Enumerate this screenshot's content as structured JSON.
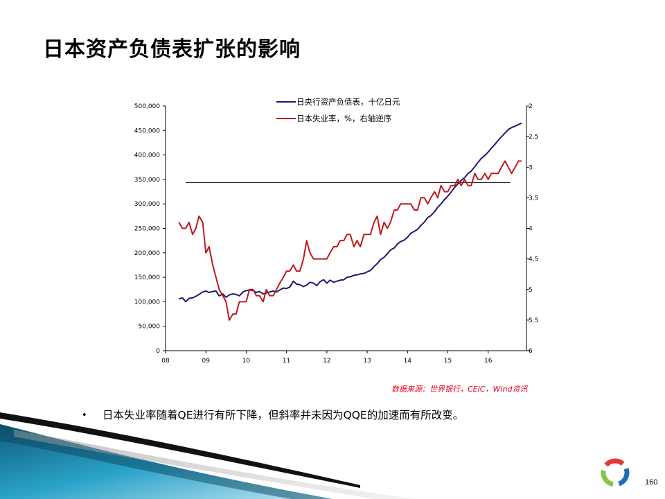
{
  "slide": {
    "title": "日本资产负债表扩张的影响",
    "source": "数据来源：世界银行，CEIC，Wind资讯",
    "bullet": "日本失业率随着QE进行有所下降，但斜率并未因为QQE的加速而有所改变。",
    "bullet_marker": "•",
    "page_number": "160"
  },
  "chart_data": {
    "type": "line",
    "x_ticks": [
      "08",
      "09",
      "10",
      "11",
      "12",
      "13",
      "14",
      "15",
      "16"
    ],
    "x_range": [
      2008.0,
      2016.95
    ],
    "y_left": {
      "min": 0,
      "max": 500000,
      "ticks": [
        "0",
        "50,000",
        "100,000",
        "150,000",
        "200,000",
        "250,000",
        "300,000",
        "350,000",
        "400,000",
        "450,000",
        "500,000"
      ]
    },
    "y_right": {
      "min": 2,
      "max": 6,
      "inverted": true,
      "ticks": [
        "2",
        "2.5",
        "3",
        "3.5",
        "4",
        "4.5",
        "5",
        "5.5",
        "6"
      ]
    },
    "reference_line": {
      "value": 3.25,
      "axis": "right",
      "x_from": 2008.5,
      "x_to": 2016.55,
      "color": "#000000"
    },
    "series": [
      {
        "name": "日央行资产负债表，十亿日元",
        "axis": "left",
        "color": "#1a1a6e",
        "x": [
          2008.33,
          2008.42,
          2008.5,
          2008.58,
          2008.67,
          2008.75,
          2008.83,
          2008.92,
          2009.0,
          2009.08,
          2009.17,
          2009.25,
          2009.33,
          2009.42,
          2009.5,
          2009.58,
          2009.67,
          2009.75,
          2009.83,
          2009.92,
          2010.0,
          2010.08,
          2010.17,
          2010.25,
          2010.33,
          2010.42,
          2010.5,
          2010.58,
          2010.67,
          2010.75,
          2010.83,
          2010.92,
          2011.0,
          2011.08,
          2011.17,
          2011.25,
          2011.33,
          2011.42,
          2011.5,
          2011.58,
          2011.67,
          2011.75,
          2011.83,
          2011.92,
          2012.0,
          2012.08,
          2012.17,
          2012.25,
          2012.33,
          2012.42,
          2012.5,
          2012.58,
          2012.67,
          2012.75,
          2012.83,
          2012.92,
          2013.0,
          2013.08,
          2013.17,
          2013.25,
          2013.33,
          2013.42,
          2013.5,
          2013.58,
          2013.67,
          2013.75,
          2013.83,
          2013.92,
          2014.0,
          2014.08,
          2014.17,
          2014.25,
          2014.33,
          2014.42,
          2014.5,
          2014.58,
          2014.67,
          2014.75,
          2014.83,
          2014.92,
          2015.0,
          2015.08,
          2015.17,
          2015.25,
          2015.33,
          2015.42,
          2015.5,
          2015.58,
          2015.67,
          2015.75,
          2015.83,
          2015.92,
          2016.0,
          2016.08,
          2016.17,
          2016.25,
          2016.33,
          2016.42,
          2016.5,
          2016.58,
          2016.67,
          2016.75,
          2016.83
        ],
        "values": [
          106000,
          108000,
          100000,
          107000,
          108000,
          111000,
          115000,
          120000,
          122000,
          119000,
          121000,
          122000,
          112000,
          116000,
          109000,
          114000,
          116000,
          115000,
          112000,
          120000,
          123000,
          124000,
          123000,
          119000,
          121000,
          116000,
          118000,
          120000,
          122000,
          120000,
          124000,
          128000,
          127000,
          130000,
          142000,
          136000,
          135000,
          131000,
          134000,
          140000,
          138000,
          133000,
          141000,
          145000,
          138000,
          144000,
          140000,
          142000,
          144000,
          145000,
          150000,
          151000,
          154000,
          155000,
          157000,
          158000,
          161000,
          164000,
          172000,
          178000,
          186000,
          191000,
          198000,
          206000,
          210000,
          218000,
          223000,
          226000,
          232000,
          240000,
          244000,
          248000,
          256000,
          263000,
          272000,
          276000,
          284000,
          293000,
          300000,
          309000,
          316000,
          324000,
          334000,
          341000,
          348000,
          354000,
          362000,
          367000,
          376000,
          385000,
          393000,
          399000,
          406000,
          414000,
          422000,
          430000,
          437000,
          445000,
          452000,
          456000,
          459000,
          462000,
          465000
        ]
      },
      {
        "name": "日本失业率，%，右轴逆序",
        "axis": "right",
        "color": "#c0181c",
        "x": [
          2008.33,
          2008.42,
          2008.5,
          2008.58,
          2008.67,
          2008.75,
          2008.83,
          2008.92,
          2009.0,
          2009.08,
          2009.17,
          2009.25,
          2009.33,
          2009.42,
          2009.5,
          2009.58,
          2009.67,
          2009.75,
          2009.83,
          2009.92,
          2010.0,
          2010.08,
          2010.17,
          2010.25,
          2010.33,
          2010.42,
          2010.5,
          2010.58,
          2010.67,
          2010.75,
          2010.83,
          2010.92,
          2011.0,
          2011.08,
          2011.17,
          2011.25,
          2011.33,
          2011.42,
          2011.5,
          2011.58,
          2011.67,
          2011.75,
          2011.83,
          2011.92,
          2012.0,
          2012.08,
          2012.17,
          2012.25,
          2012.33,
          2012.42,
          2012.5,
          2012.58,
          2012.67,
          2012.75,
          2012.83,
          2012.92,
          2013.0,
          2013.08,
          2013.17,
          2013.25,
          2013.33,
          2013.42,
          2013.5,
          2013.58,
          2013.67,
          2013.75,
          2013.83,
          2013.92,
          2014.0,
          2014.08,
          2014.17,
          2014.25,
          2014.33,
          2014.42,
          2014.5,
          2014.58,
          2014.67,
          2014.75,
          2014.83,
          2014.92,
          2015.0,
          2015.08,
          2015.17,
          2015.25,
          2015.33,
          2015.42,
          2015.5,
          2015.58,
          2015.67,
          2015.75,
          2015.83,
          2015.92,
          2016.0,
          2016.08,
          2016.17,
          2016.25,
          2016.33,
          2016.42,
          2016.5,
          2016.58,
          2016.67,
          2016.75,
          2016.83
        ],
        "values": [
          3.9,
          4.0,
          4.0,
          3.9,
          4.1,
          4.0,
          3.8,
          3.9,
          4.4,
          4.3,
          4.6,
          4.8,
          5.0,
          5.1,
          5.2,
          5.5,
          5.4,
          5.4,
          5.2,
          5.2,
          5.2,
          5.0,
          5.0,
          5.1,
          5.1,
          5.2,
          5.0,
          5.1,
          5.1,
          5.0,
          4.9,
          4.8,
          4.7,
          4.7,
          4.6,
          4.7,
          4.7,
          4.5,
          4.2,
          4.4,
          4.5,
          4.5,
          4.5,
          4.5,
          4.5,
          4.4,
          4.3,
          4.3,
          4.2,
          4.2,
          4.1,
          4.1,
          4.3,
          4.2,
          4.3,
          4.1,
          4.1,
          4.1,
          3.9,
          3.8,
          4.1,
          3.9,
          4.0,
          3.9,
          3.7,
          3.7,
          3.6,
          3.6,
          3.6,
          3.6,
          3.7,
          3.7,
          3.5,
          3.5,
          3.6,
          3.5,
          3.4,
          3.5,
          3.3,
          3.4,
          3.4,
          3.3,
          3.3,
          3.2,
          3.3,
          3.2,
          3.3,
          3.3,
          3.1,
          3.2,
          3.2,
          3.1,
          3.2,
          3.1,
          3.1,
          3.1,
          3.0,
          2.9,
          3.0,
          3.1,
          3.0,
          2.9,
          2.9
        ]
      }
    ]
  }
}
